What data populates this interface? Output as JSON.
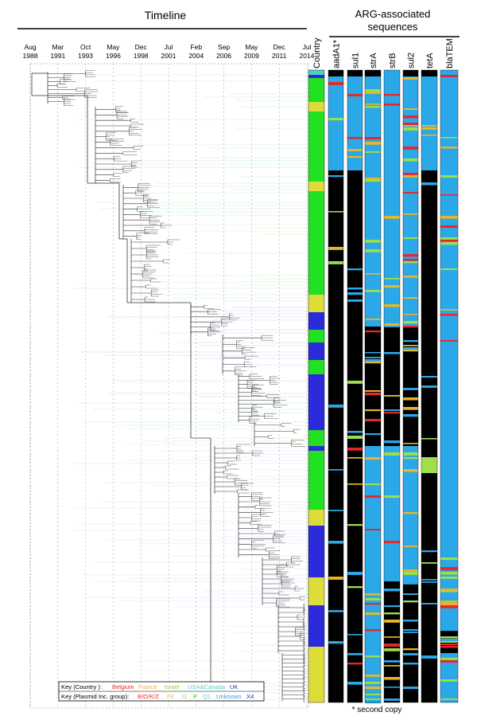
{
  "header": {
    "timeline_title": "Timeline",
    "arg_title_line1": "ARG-associated",
    "arg_title_line2": "sequences"
  },
  "timeline": {
    "ticks": [
      {
        "month": "Aug",
        "year": "1988"
      },
      {
        "month": "Mar",
        "year": "1991"
      },
      {
        "month": "Oct",
        "year": "1993"
      },
      {
        "month": "May",
        "year": "1996"
      },
      {
        "month": "Dec",
        "year": "1998"
      },
      {
        "month": "Jul",
        "year": "2001"
      },
      {
        "month": "Feb",
        "year": "2004"
      },
      {
        "month": "Sep",
        "year": "2006"
      },
      {
        "month": "May",
        "year": "2009"
      },
      {
        "month": "Dec",
        "year": "2011"
      },
      {
        "month": "Jul",
        "year": "2014"
      }
    ]
  },
  "columns": [
    "Country",
    "aadA1*",
    "sul1",
    "strA",
    "strB",
    "sul2",
    "tetA",
    "blaTEM"
  ],
  "keys": {
    "country": {
      "label": "Key (Country ):",
      "items": [
        {
          "name": "Belgium",
          "color": "#e8262b"
        },
        {
          "name": "France",
          "color": "#f4a93a"
        },
        {
          "name": "Israel",
          "color": "#8fd13f"
        },
        {
          "name": "USA&Canada",
          "color": "#4fd1c8"
        },
        {
          "name": "UK",
          "color": "#2b2bd9"
        }
      ]
    },
    "plasmid": {
      "label": "Key (Plasmid Inc. group):",
      "items": [
        {
          "name": "B/O/K/Z",
          "color": "#e8262b"
        },
        {
          "name": "FII",
          "color": "#e9b628"
        },
        {
          "name": "I1",
          "color": "#8fd13f"
        },
        {
          "name": "P",
          "color": "#28b828"
        },
        {
          "name": "Q1",
          "color": "#4fd1c8"
        },
        {
          "name": "Unknown",
          "color": "#2a9ee0"
        },
        {
          "name": "X4",
          "color": "#2b2bd9"
        }
      ]
    }
  },
  "footnote": "* second copy",
  "colors": {
    "country_uk": "#2b2bd9",
    "country_israel": "#22e022",
    "country_usa": "#4fd1c8",
    "country_france": "#dddd3a",
    "country_belgium": "#e8262b",
    "gene_absent": "#000000",
    "gene_present": "#2aa8e8",
    "gene_variant_green": "#9ee04a",
    "gene_variant_red": "#e8262b"
  }
}
